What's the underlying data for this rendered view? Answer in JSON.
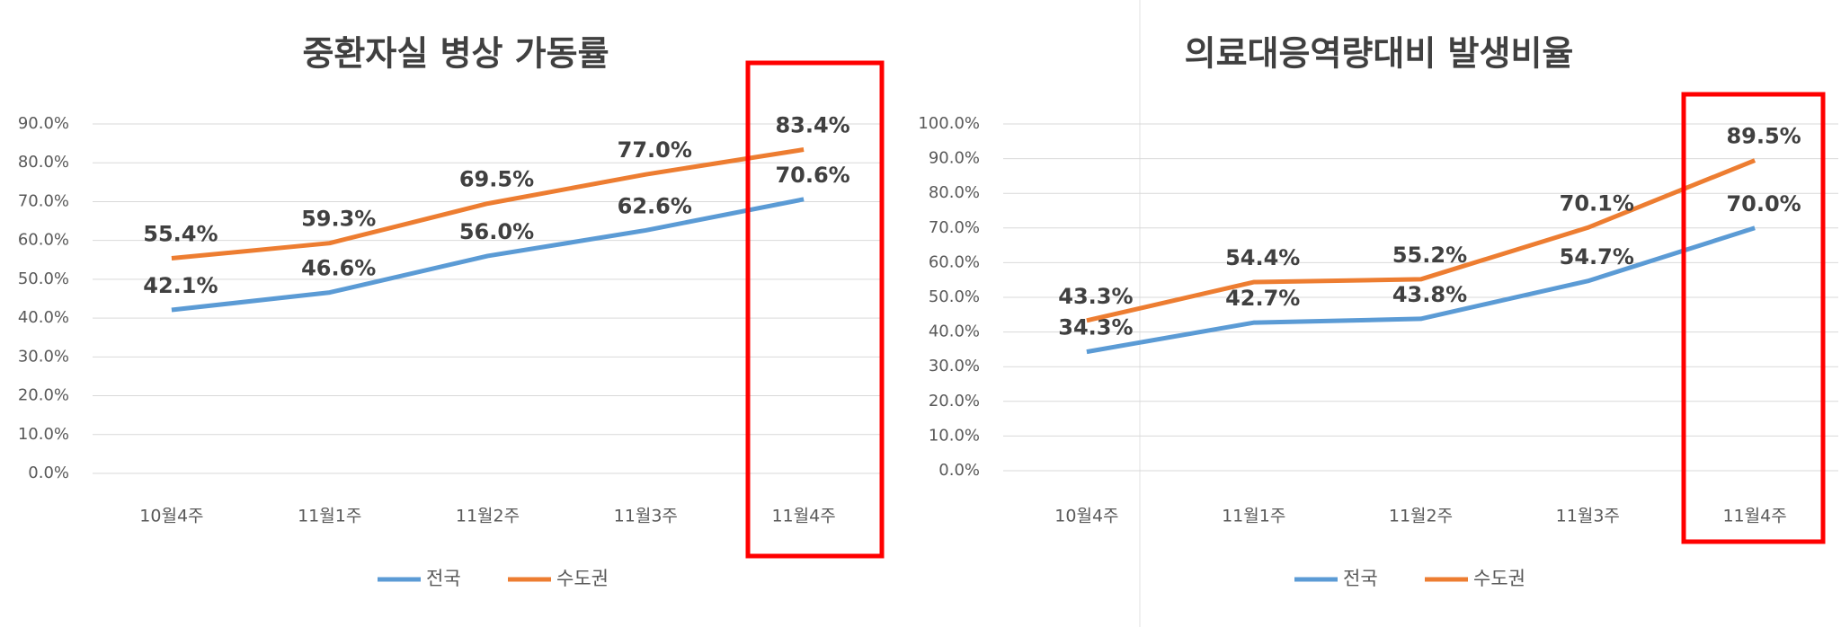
{
  "chart_data": [
    {
      "type": "line",
      "title": "중환자실 병상 가동률",
      "categories": [
        "10월4주",
        "11월1주",
        "11월2주",
        "11월3주",
        "11월4주"
      ],
      "series": [
        {
          "name": "전국",
          "color": "#5b9bd5",
          "values": [
            42.1,
            46.6,
            56.0,
            62.6,
            70.6
          ],
          "value_labels": [
            "42.1%",
            "46.6%",
            "56.0%",
            "62.6%",
            "70.6%"
          ]
        },
        {
          "name": "수도권",
          "color": "#ed7d31",
          "values": [
            55.4,
            59.3,
            69.5,
            77.0,
            83.4
          ],
          "value_labels": [
            "55.4%",
            "59.3%",
            "69.5%",
            "77.0%",
            "83.4%"
          ]
        }
      ],
      "ylim": [
        0,
        90
      ],
      "yticks": [
        {
          "value": 0,
          "label": "0.0%"
        },
        {
          "value": 10,
          "label": "10.0%"
        },
        {
          "value": 20,
          "label": "20.0%"
        },
        {
          "value": 30,
          "label": "30.0%"
        },
        {
          "value": 40,
          "label": "40.0%"
        },
        {
          "value": 50,
          "label": "50.0%"
        },
        {
          "value": 60,
          "label": "60.0%"
        },
        {
          "value": 70,
          "label": "70.0%"
        },
        {
          "value": 80,
          "label": "80.0%"
        },
        {
          "value": 90,
          "label": "90.0%"
        }
      ],
      "grid": true,
      "legend": "bottom"
    },
    {
      "type": "line",
      "title": "의료대응역량대비 발생비율",
      "categories": [
        "10월4주",
        "11월1주",
        "11월2주",
        "11월3주",
        "11월4주"
      ],
      "series": [
        {
          "name": "전국",
          "color": "#5b9bd5",
          "values": [
            34.3,
            42.7,
            43.8,
            54.7,
            70.0
          ],
          "value_labels": [
            "34.3%",
            "42.7%",
            "43.8%",
            "54.7%",
            "70.0%"
          ]
        },
        {
          "name": "수도권",
          "color": "#ed7d31",
          "values": [
            43.3,
            54.4,
            55.2,
            70.1,
            89.5
          ],
          "value_labels": [
            "43.3%",
            "54.4%",
            "55.2%",
            "70.1%",
            "89.5%"
          ]
        }
      ],
      "ylim": [
        0,
        100
      ],
      "yticks": [
        {
          "value": 0,
          "label": "0.0%"
        },
        {
          "value": 10,
          "label": "10.0%"
        },
        {
          "value": 20,
          "label": "20.0%"
        },
        {
          "value": 30,
          "label": "30.0%"
        },
        {
          "value": 40,
          "label": "40.0%"
        },
        {
          "value": 50,
          "label": "50.0%"
        },
        {
          "value": 60,
          "label": "60.0%"
        },
        {
          "value": 70,
          "label": "70.0%"
        },
        {
          "value": 80,
          "label": "80.0%"
        },
        {
          "value": 90,
          "label": "90.0%"
        },
        {
          "value": 100,
          "label": "100.0%"
        }
      ],
      "grid": true,
      "legend": "bottom"
    }
  ]
}
